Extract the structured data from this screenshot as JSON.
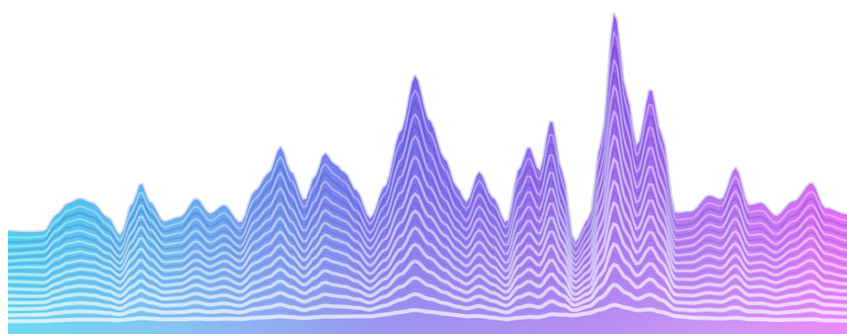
{
  "palette": {
    "background": "#ffffff",
    "gradient_stops": [
      "#21c6e8",
      "#4aa3ec",
      "#6a5ee8",
      "#8e54ea",
      "#b15ef0",
      "#e04ef2"
    ],
    "band_dark": "#1f2fb8",
    "band_light": "#ffffff"
  }
}
